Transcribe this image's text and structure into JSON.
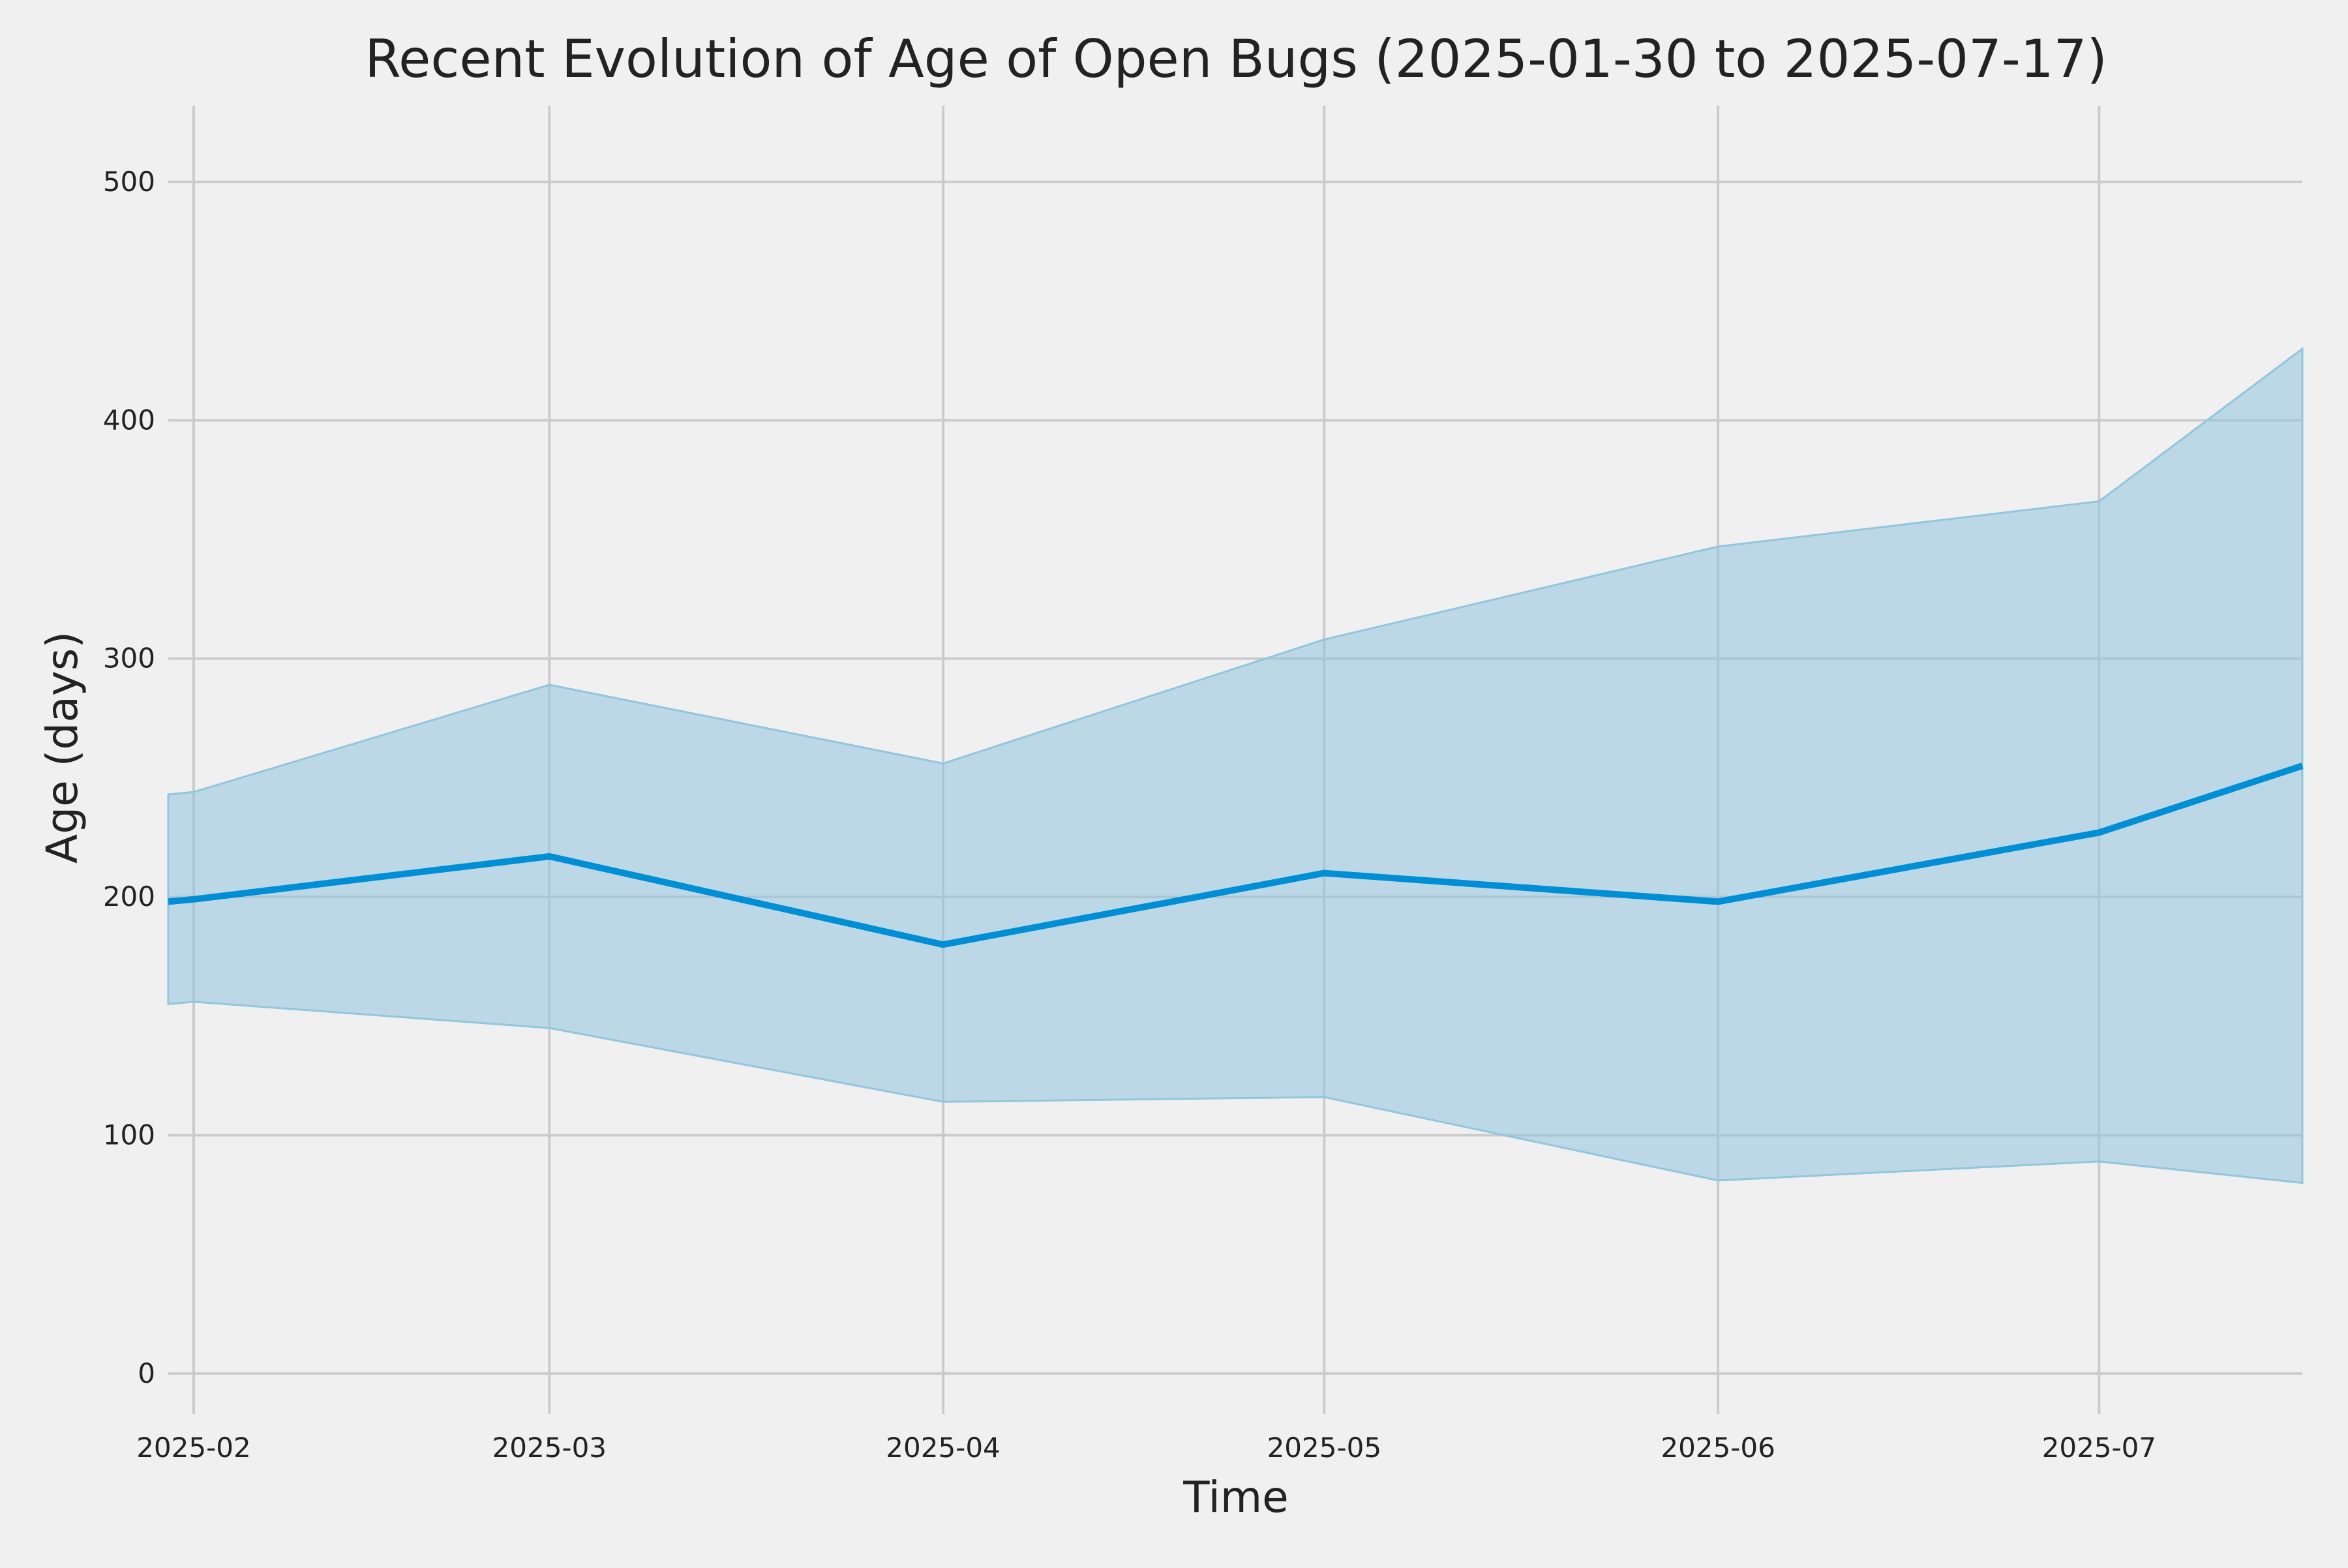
{
  "chart_data": {
    "type": "line",
    "title": "Recent Evolution of Age of Open Bugs (2025-01-30 to 2025-07-17)",
    "xlabel": "Time",
    "ylabel": "Age (days)",
    "x_range": [
      "2025-01-30",
      "2025-07-17"
    ],
    "ylim": [
      -17,
      532
    ],
    "grid": true,
    "x_ticks": [
      "2025-02-01",
      "2025-03-01",
      "2025-04-01",
      "2025-05-01",
      "2025-06-01",
      "2025-07-01"
    ],
    "x_tick_labels": [
      "2025-02",
      "2025-03",
      "2025-04",
      "2025-05",
      "2025-06",
      "2025-07"
    ],
    "y_ticks": [
      0,
      100,
      200,
      300,
      400,
      500
    ],
    "y_tick_labels": [
      "0",
      "100",
      "200",
      "300",
      "400",
      "500"
    ],
    "x": [
      "2025-01-30",
      "2025-02-01",
      "2025-03-01",
      "2025-04-01",
      "2025-05-01",
      "2025-06-01",
      "2025-07-01",
      "2025-07-17"
    ],
    "series": [
      {
        "values": [
          198,
          199,
          217,
          180,
          210,
          198,
          227,
          255
        ],
        "color": "#008fd5",
        "role": "line"
      }
    ],
    "band": {
      "upper": [
        243,
        244,
        289,
        256,
        308,
        347,
        366,
        430
      ],
      "lower": [
        155,
        156,
        145,
        114,
        116,
        81,
        89,
        80
      ],
      "color": "#92c5de"
    },
    "colors": {
      "background": "#f0f0f0",
      "grid": "#cbcbcb",
      "text": "#222222"
    }
  }
}
